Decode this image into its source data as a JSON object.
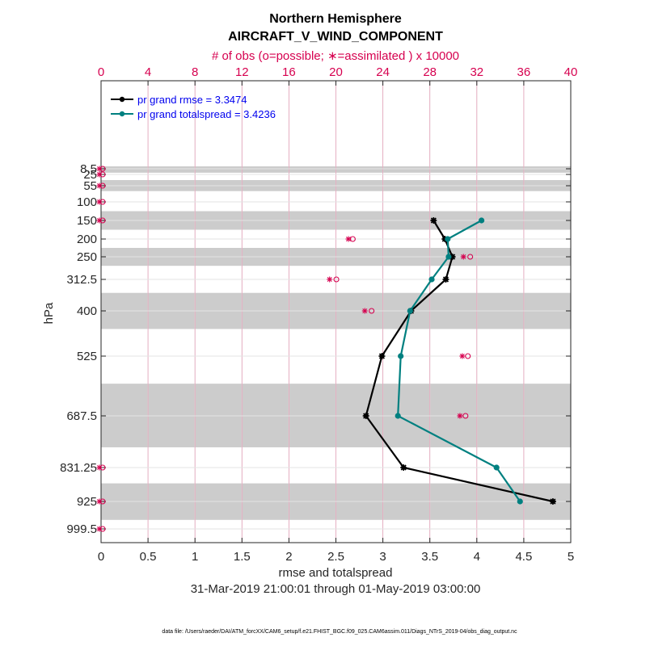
{
  "chart_data": {
    "type": "line",
    "title": "Northern Hemisphere",
    "subtitle": "AIRCRAFT_V_WIND_COMPONENT",
    "top_axis_label": "# of obs (o=possible; ∗=assimilated ) x 10000",
    "xlabel": "rmse and totalspread",
    "ylabel": "hPa",
    "date_range": "31-Mar-2019 21:00:01 through 01-May-2019 03:00:00",
    "footer": "data file: /Users/raeder/DAI/ATM_forcXX/CAM6_setup/f.e21.FHIST_BGC.f09_025.CAM6assim.011/Diags_NTrS_2019-04/obs_diag_output.nc",
    "xlim": [
      0,
      5
    ],
    "x_ticks": [
      "0",
      "0.5",
      "1",
      "1.5",
      "2",
      "2.5",
      "3",
      "3.5",
      "4",
      "4.5",
      "5"
    ],
    "top_xlim": [
      0,
      40
    ],
    "top_ticks": [
      "0",
      "4",
      "8",
      "12",
      "16",
      "20",
      "24",
      "28",
      "32",
      "36",
      "40"
    ],
    "levels": [
      8.5,
      25,
      55,
      100,
      150,
      200,
      250,
      312.5,
      400,
      525,
      687.5,
      831.25,
      925,
      999.5
    ],
    "level_labels": [
      "8.5",
      "25",
      "55",
      "100",
      "150",
      "200",
      "250",
      "312.5",
      "400",
      "525",
      "687.5",
      "831.25",
      "925",
      "999.5"
    ],
    "shaded_bands": [
      [
        0,
        20
      ],
      [
        40,
        70
      ],
      [
        125,
        175
      ],
      [
        225,
        275
      ],
      [
        350,
        450
      ],
      [
        600,
        775
      ],
      [
        875,
        975
      ]
    ],
    "series": [
      {
        "name": "rmse",
        "legend": "pr grand rmse = 3.3474",
        "color": "#000000",
        "marker": "star",
        "levels": [
          150,
          200,
          250,
          312.5,
          400,
          525,
          687.5,
          831.25,
          925
        ],
        "values": [
          3.54,
          3.66,
          3.74,
          3.67,
          3.3,
          2.99,
          2.82,
          3.22,
          4.81
        ]
      },
      {
        "name": "totalspread",
        "legend": "pr grand totalspread = 3.4236",
        "color": "#008080",
        "marker": "circle",
        "levels": [
          150,
          200,
          250,
          312.5,
          400,
          525,
          687.5,
          831.25,
          925
        ],
        "values": [
          4.05,
          3.69,
          3.7,
          3.52,
          3.29,
          3.19,
          3.16,
          4.21,
          4.46
        ]
      }
    ],
    "obs_counts": {
      "color": "#d6004f",
      "levels": [
        8.5,
        25,
        55,
        100,
        150,
        200,
        250,
        312.5,
        400,
        525,
        687.5,
        831.25,
        925,
        999.5
      ],
      "possible": [
        0,
        0,
        0,
        0,
        0,
        21.3,
        31.3,
        19.9,
        22.9,
        31.1,
        30.9,
        0,
        0,
        0
      ],
      "assimilated": [
        0,
        0,
        0,
        0,
        0,
        21.2,
        31.0,
        19.6,
        22.6,
        30.9,
        30.7,
        0,
        0,
        0
      ]
    }
  }
}
